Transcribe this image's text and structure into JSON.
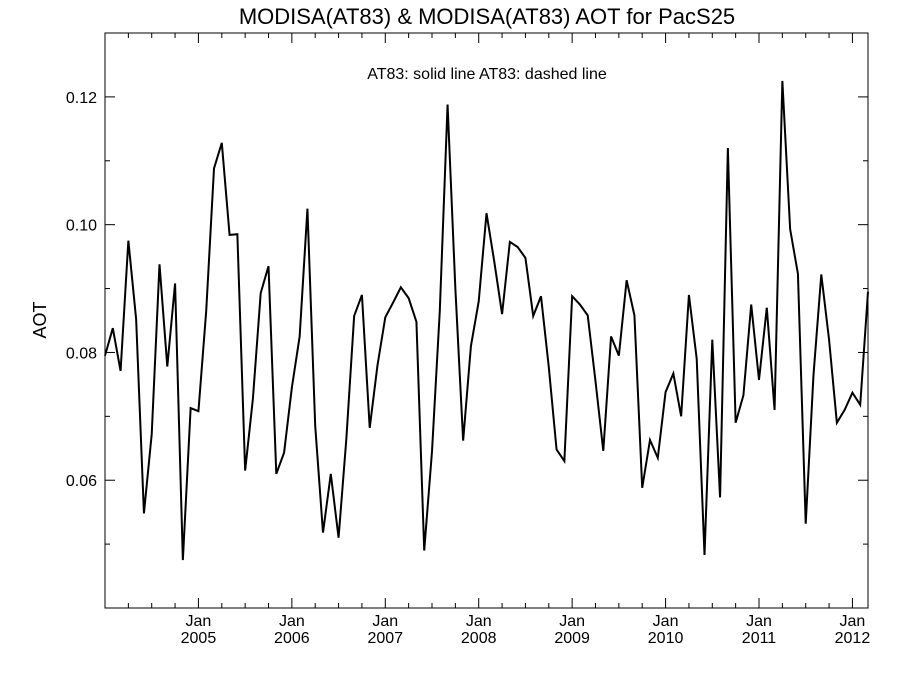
{
  "chart_data": {
    "type": "line",
    "title": "MODISA(AT83) & MODISA(AT83)  AOT for PacS25",
    "annotation": "AT83: solid line   AT83: dashed line",
    "xlabel": "",
    "ylabel": "AOT",
    "ylim": [
      0.04,
      0.13
    ],
    "y_ticks": [
      0.06,
      0.08,
      0.1,
      0.12
    ],
    "y_tick_labels": [
      "0.06",
      "0.08",
      "0.10",
      "0.12"
    ],
    "y_minor_step": 0.01,
    "xlim": [
      "2004-01",
      "2012-03"
    ],
    "x_ticks": [
      {
        "date": "2005-01",
        "month": "Jan",
        "year": "2005"
      },
      {
        "date": "2006-01",
        "month": "Jan",
        "year": "2006"
      },
      {
        "date": "2007-01",
        "month": "Jan",
        "year": "2007"
      },
      {
        "date": "2008-01",
        "month": "Jan",
        "year": "2008"
      },
      {
        "date": "2009-01",
        "month": "Jan",
        "year": "2009"
      },
      {
        "date": "2010-01",
        "month": "Jan",
        "year": "2010"
      },
      {
        "date": "2011-01",
        "month": "Jan",
        "year": "2011"
      },
      {
        "date": "2012-01",
        "month": "Jan",
        "year": "2012"
      }
    ],
    "grid": false,
    "line_color": "#000000",
    "series": [
      {
        "style": "solid",
        "x": [
          "2004-01",
          "2004-02",
          "2004-03",
          "2004-04",
          "2004-05",
          "2004-06",
          "2004-07",
          "2004-08",
          "2004-09",
          "2004-10",
          "2004-11",
          "2004-12",
          "2005-01",
          "2005-02",
          "2005-03",
          "2005-04",
          "2005-05",
          "2005-06",
          "2005-07",
          "2005-08",
          "2005-09",
          "2005-10",
          "2005-11",
          "2005-12",
          "2006-01",
          "2006-02",
          "2006-03",
          "2006-04",
          "2006-05",
          "2006-06",
          "2006-07",
          "2006-08",
          "2006-09",
          "2006-10",
          "2006-11",
          "2006-12",
          "2007-01",
          "2007-02",
          "2007-03",
          "2007-04",
          "2007-05",
          "2007-06",
          "2007-07",
          "2007-08",
          "2007-09",
          "2007-10",
          "2007-11",
          "2007-12",
          "2008-01",
          "2008-02",
          "2008-03",
          "2008-04",
          "2008-05",
          "2008-06",
          "2008-07",
          "2008-08",
          "2008-09",
          "2008-10",
          "2008-11",
          "2008-12",
          "2009-01",
          "2009-02",
          "2009-03",
          "2009-04",
          "2009-05",
          "2009-06",
          "2009-07",
          "2009-08",
          "2009-09",
          "2009-10",
          "2009-11",
          "2009-12",
          "2010-01",
          "2010-02",
          "2010-03",
          "2010-04",
          "2010-05",
          "2010-06",
          "2010-07",
          "2010-08",
          "2010-09",
          "2010-10",
          "2010-11",
          "2010-12",
          "2011-01",
          "2011-02",
          "2011-03",
          "2011-04",
          "2011-05",
          "2011-06",
          "2011-07",
          "2011-08",
          "2011-09",
          "2011-10",
          "2011-11",
          "2011-12",
          "2012-01",
          "2012-02",
          "2012-03"
        ],
        "values": [
          0.0795,
          0.0838,
          0.0771,
          0.0975,
          0.0852,
          0.0548,
          0.0672,
          0.0938,
          0.0778,
          0.0908,
          0.0475,
          0.0713,
          0.0708,
          0.0865,
          0.1088,
          0.1128,
          0.0984,
          0.0985,
          0.0615,
          0.0728,
          0.0893,
          0.0935,
          0.061,
          0.0643,
          0.0745,
          0.0825,
          0.1025,
          0.0685,
          0.0518,
          0.061,
          0.051,
          0.0665,
          0.0857,
          0.089,
          0.0682,
          0.078,
          0.0855,
          0.0878,
          0.0902,
          0.0885,
          0.0848,
          0.049,
          0.0645,
          0.0865,
          0.1188,
          0.09,
          0.0662,
          0.081,
          0.088,
          0.1018,
          0.0942,
          0.086,
          0.0973,
          0.0965,
          0.0948,
          0.0857,
          0.0888,
          0.0777,
          0.0648,
          0.063,
          0.0888,
          0.0875,
          0.0858,
          0.0755,
          0.0646,
          0.0825,
          0.0795,
          0.0913,
          0.0858,
          0.0588,
          0.0663,
          0.0635,
          0.0738,
          0.0767,
          0.07,
          0.089,
          0.079,
          0.0483,
          0.082,
          0.0573,
          0.112,
          0.069,
          0.0733,
          0.0875,
          0.0757,
          0.087,
          0.071,
          0.1225,
          0.0993,
          0.0923,
          0.0532,
          0.0765,
          0.0922,
          0.082,
          0.069,
          0.071,
          0.0737,
          0.0718,
          0.0895
        ]
      }
    ]
  }
}
